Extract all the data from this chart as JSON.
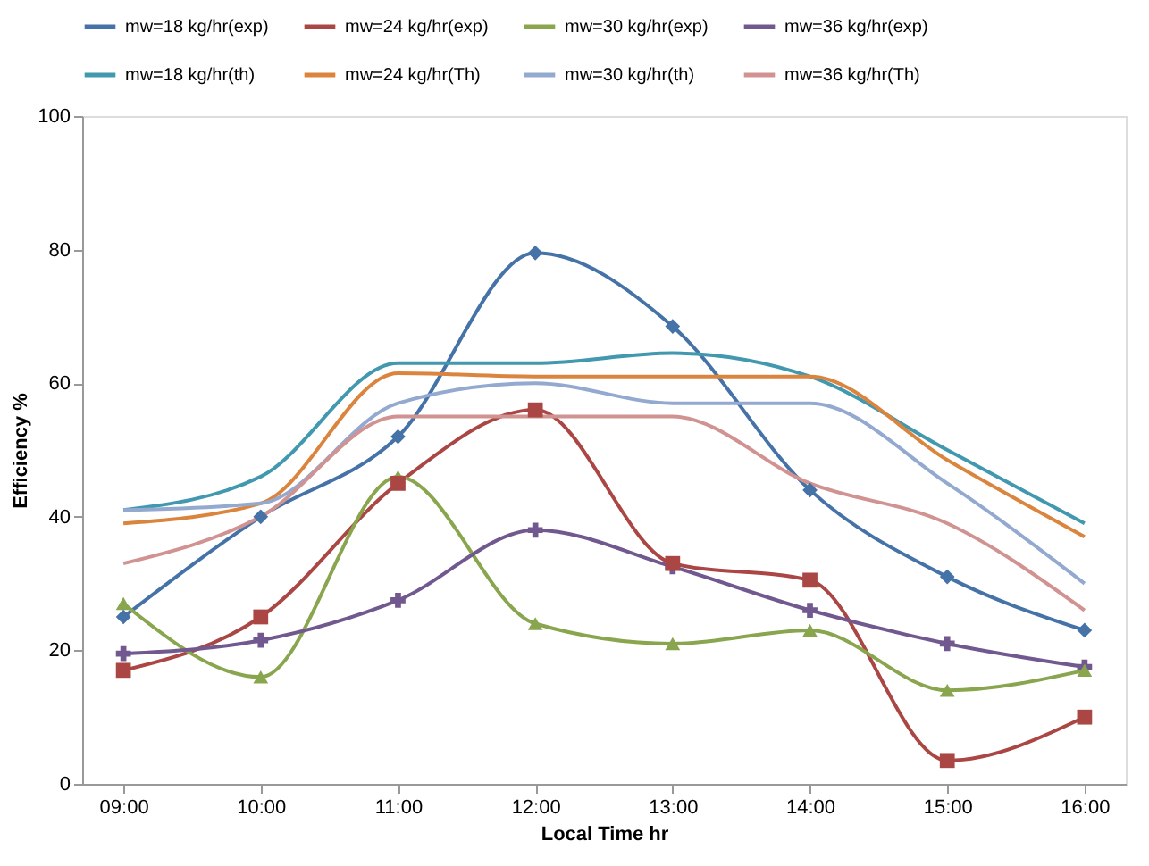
{
  "chart_data": {
    "type": "line",
    "xlabel": "Local Time hr",
    "ylabel": "Efficiency %",
    "categories": [
      "09:00",
      "10:00",
      "11:00",
      "12:00",
      "13:00",
      "14:00",
      "15:00",
      "16:00"
    ],
    "ylim": [
      0,
      100
    ],
    "yticks": [
      0,
      20,
      40,
      60,
      80,
      100
    ],
    "grid": false,
    "legend": "top",
    "series": [
      {
        "name": "mw=18 kg/hr(exp)",
        "color": "#4572a7",
        "marker": "diamond",
        "values": [
          25,
          40,
          52,
          79.5,
          68.5,
          44,
          31,
          23
        ]
      },
      {
        "name": "mw=24 kg/hr(exp)",
        "color": "#aa4643",
        "marker": "square",
        "values": [
          17,
          25,
          45,
          56,
          33,
          30.5,
          3.5,
          10
        ]
      },
      {
        "name": "mw=30 kg/hr(exp)",
        "color": "#89a54e",
        "marker": "triangle",
        "values": [
          27,
          16,
          46,
          24,
          21,
          23,
          14,
          17
        ]
      },
      {
        "name": "mw=36 kg/hr(exp)",
        "color": "#71588f",
        "marker": "cross",
        "values": [
          19.5,
          21.5,
          27.5,
          38,
          32.5,
          26,
          21,
          17.5
        ]
      },
      {
        "name": "mw=18 kg/hr(th)",
        "color": "#4198af",
        "marker": "none",
        "values": [
          41,
          46,
          63,
          63,
          64.5,
          61,
          50,
          39
        ]
      },
      {
        "name": "mw=24 kg/hr(Th)",
        "color": "#db843d",
        "marker": "none",
        "values": [
          39,
          42,
          61.5,
          61,
          61,
          61,
          48.5,
          37
        ]
      },
      {
        "name": "mw=30 kg/hr(th)",
        "color": "#93a9cf",
        "marker": "none",
        "values": [
          41,
          42,
          57,
          60,
          57,
          57,
          45,
          30
        ]
      },
      {
        "name": "mw=36 kg/hr(Th)",
        "color": "#d19392",
        "marker": "none",
        "values": [
          33,
          40,
          55,
          55,
          55,
          45,
          39,
          26
        ]
      }
    ]
  }
}
